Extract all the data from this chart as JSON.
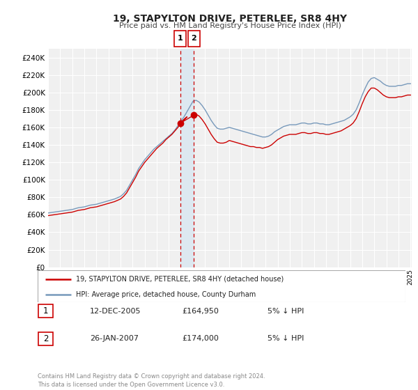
{
  "title": "19, STAPYLTON DRIVE, PETERLEE, SR8 4HY",
  "subtitle": "Price paid vs. HM Land Registry's House Price Index (HPI)",
  "legend_label_red": "19, STAPYLTON DRIVE, PETERLEE, SR8 4HY (detached house)",
  "legend_label_blue": "HPI: Average price, detached house, County Durham",
  "annotation1_date": "12-DEC-2005",
  "annotation1_price": "£164,950",
  "annotation1_hpi": "5% ↓ HPI",
  "annotation1_year": 2005.95,
  "annotation1_value": 164950,
  "annotation2_date": "26-JAN-2007",
  "annotation2_price": "£174,000",
  "annotation2_hpi": "5% ↓ HPI",
  "annotation2_year": 2007.07,
  "annotation2_value": 174000,
  "background_color": "#ffffff",
  "plot_bg_color": "#f0f0f0",
  "grid_color": "#ffffff",
  "red_color": "#cc0000",
  "blue_color": "#7799bb",
  "shade_color": "#dde8f0",
  "ylim_min": 0,
  "ylim_max": 250000,
  "yticks": [
    0,
    20000,
    40000,
    60000,
    80000,
    100000,
    120000,
    140000,
    160000,
    180000,
    200000,
    220000,
    240000
  ],
  "xmin": 1995,
  "xmax": 2025,
  "footer": "Contains HM Land Registry data © Crown copyright and database right 2024.\nThis data is licensed under the Open Government Licence v3.0.",
  "years_hpi": [
    1995.0,
    1995.25,
    1995.5,
    1995.75,
    1996.0,
    1996.25,
    1996.5,
    1996.75,
    1997.0,
    1997.25,
    1997.5,
    1997.75,
    1998.0,
    1998.25,
    1998.5,
    1998.75,
    1999.0,
    1999.25,
    1999.5,
    1999.75,
    2000.0,
    2000.25,
    2000.5,
    2000.75,
    2001.0,
    2001.25,
    2001.5,
    2001.75,
    2002.0,
    2002.25,
    2002.5,
    2002.75,
    2003.0,
    2003.25,
    2003.5,
    2003.75,
    2004.0,
    2004.25,
    2004.5,
    2004.75,
    2005.0,
    2005.25,
    2005.5,
    2005.75,
    2006.0,
    2006.25,
    2006.5,
    2006.75,
    2007.0,
    2007.25,
    2007.5,
    2007.75,
    2008.0,
    2008.25,
    2008.5,
    2008.75,
    2009.0,
    2009.25,
    2009.5,
    2009.75,
    2010.0,
    2010.25,
    2010.5,
    2010.75,
    2011.0,
    2011.25,
    2011.5,
    2011.75,
    2012.0,
    2012.25,
    2012.5,
    2012.75,
    2013.0,
    2013.25,
    2013.5,
    2013.75,
    2014.0,
    2014.25,
    2014.5,
    2014.75,
    2015.0,
    2015.25,
    2015.5,
    2015.75,
    2016.0,
    2016.25,
    2016.5,
    2016.75,
    2017.0,
    2017.25,
    2017.5,
    2017.75,
    2018.0,
    2018.25,
    2018.5,
    2018.75,
    2019.0,
    2019.25,
    2019.5,
    2019.75,
    2020.0,
    2020.25,
    2020.5,
    2020.75,
    2021.0,
    2021.25,
    2021.5,
    2021.75,
    2022.0,
    2022.25,
    2022.5,
    2022.75,
    2023.0,
    2023.25,
    2023.5,
    2023.75,
    2024.0,
    2024.25,
    2024.5,
    2024.75,
    2025.0
  ],
  "values_hpi": [
    62000,
    62500,
    63000,
    63500,
    64000,
    64500,
    65000,
    65500,
    66000,
    67000,
    68000,
    68500,
    69000,
    70000,
    71000,
    71500,
    72000,
    73000,
    74000,
    75000,
    76000,
    77000,
    78000,
    79500,
    81000,
    84000,
    88000,
    94000,
    100000,
    106000,
    113000,
    118000,
    123000,
    127000,
    131000,
    135000,
    138000,
    141000,
    144000,
    147000,
    150000,
    153000,
    157000,
    162000,
    167000,
    172000,
    178000,
    184000,
    190000,
    191000,
    189000,
    185000,
    180000,
    174000,
    168000,
    163000,
    159000,
    158000,
    158000,
    159000,
    160000,
    159000,
    158000,
    157000,
    156000,
    155000,
    154000,
    153000,
    152000,
    151000,
    150000,
    149000,
    149000,
    150000,
    152000,
    155000,
    157000,
    159000,
    161000,
    162000,
    163000,
    163000,
    163000,
    164000,
    165000,
    165000,
    164000,
    164000,
    165000,
    165000,
    164000,
    164000,
    163000,
    163000,
    164000,
    165000,
    166000,
    167000,
    168000,
    170000,
    172000,
    175000,
    180000,
    188000,
    197000,
    205000,
    212000,
    216000,
    217000,
    215000,
    213000,
    210000,
    208000,
    207000,
    207000,
    207000,
    208000,
    208000,
    209000,
    210000,
    210000
  ],
  "years_red": [
    1995.0,
    1995.25,
    1995.5,
    1995.75,
    1996.0,
    1996.25,
    1996.5,
    1996.75,
    1997.0,
    1997.25,
    1997.5,
    1997.75,
    1998.0,
    1998.25,
    1998.5,
    1998.75,
    1999.0,
    1999.25,
    1999.5,
    1999.75,
    2000.0,
    2000.25,
    2000.5,
    2000.75,
    2001.0,
    2001.25,
    2001.5,
    2001.75,
    2002.0,
    2002.25,
    2002.5,
    2002.75,
    2003.0,
    2003.25,
    2003.5,
    2003.75,
    2004.0,
    2004.25,
    2004.5,
    2004.75,
    2005.0,
    2005.25,
    2005.5,
    2005.75,
    2006.0,
    2006.25,
    2006.5,
    2005.95,
    2007.07,
    2007.25,
    2007.5,
    2007.75,
    2008.0,
    2008.25,
    2008.5,
    2008.75,
    2009.0,
    2009.25,
    2009.5,
    2009.75,
    2010.0,
    2010.25,
    2010.5,
    2010.75,
    2011.0,
    2011.25,
    2011.5,
    2011.75,
    2012.0,
    2012.25,
    2012.5,
    2012.75,
    2013.0,
    2013.25,
    2013.5,
    2013.75,
    2014.0,
    2014.25,
    2014.5,
    2014.75,
    2015.0,
    2015.25,
    2015.5,
    2015.75,
    2016.0,
    2016.25,
    2016.5,
    2016.75,
    2017.0,
    2017.25,
    2017.5,
    2017.75,
    2018.0,
    2018.25,
    2018.5,
    2018.75,
    2019.0,
    2019.25,
    2019.5,
    2019.75,
    2020.0,
    2020.25,
    2020.5,
    2020.75,
    2021.0,
    2021.25,
    2021.5,
    2021.75,
    2022.0,
    2022.25,
    2022.5,
    2022.75,
    2023.0,
    2023.25,
    2023.5,
    2023.75,
    2024.0,
    2024.25,
    2024.5,
    2024.75,
    2025.0
  ],
  "values_red": [
    59000,
    59500,
    60000,
    60500,
    61000,
    61500,
    62000,
    62500,
    63000,
    64000,
    65000,
    65500,
    66000,
    67000,
    68000,
    68500,
    69000,
    70000,
    71000,
    72000,
    73000,
    74000,
    75000,
    76500,
    78000,
    81000,
    85000,
    91000,
    97000,
    103000,
    110000,
    115000,
    120000,
    124000,
    128000,
    132000,
    136000,
    139000,
    142000,
    146000,
    149000,
    152000,
    156000,
    160000,
    164950,
    169000,
    172000,
    164950,
    174000,
    175000,
    173000,
    169000,
    164000,
    158000,
    152000,
    147000,
    143000,
    142000,
    142000,
    143000,
    145000,
    144000,
    143000,
    142000,
    141000,
    140000,
    139000,
    138000,
    138000,
    137000,
    137000,
    136000,
    137000,
    138000,
    140000,
    143000,
    146000,
    148000,
    150000,
    151000,
    152000,
    152000,
    152000,
    153000,
    154000,
    154000,
    153000,
    153000,
    154000,
    154000,
    153000,
    153000,
    152000,
    152000,
    153000,
    154000,
    155000,
    156000,
    158000,
    160000,
    162000,
    165000,
    170000,
    178000,
    187000,
    195000,
    201000,
    205000,
    205000,
    203000,
    200000,
    197000,
    195000,
    194000,
    194000,
    194000,
    195000,
    195000,
    196000,
    197000,
    197000
  ]
}
